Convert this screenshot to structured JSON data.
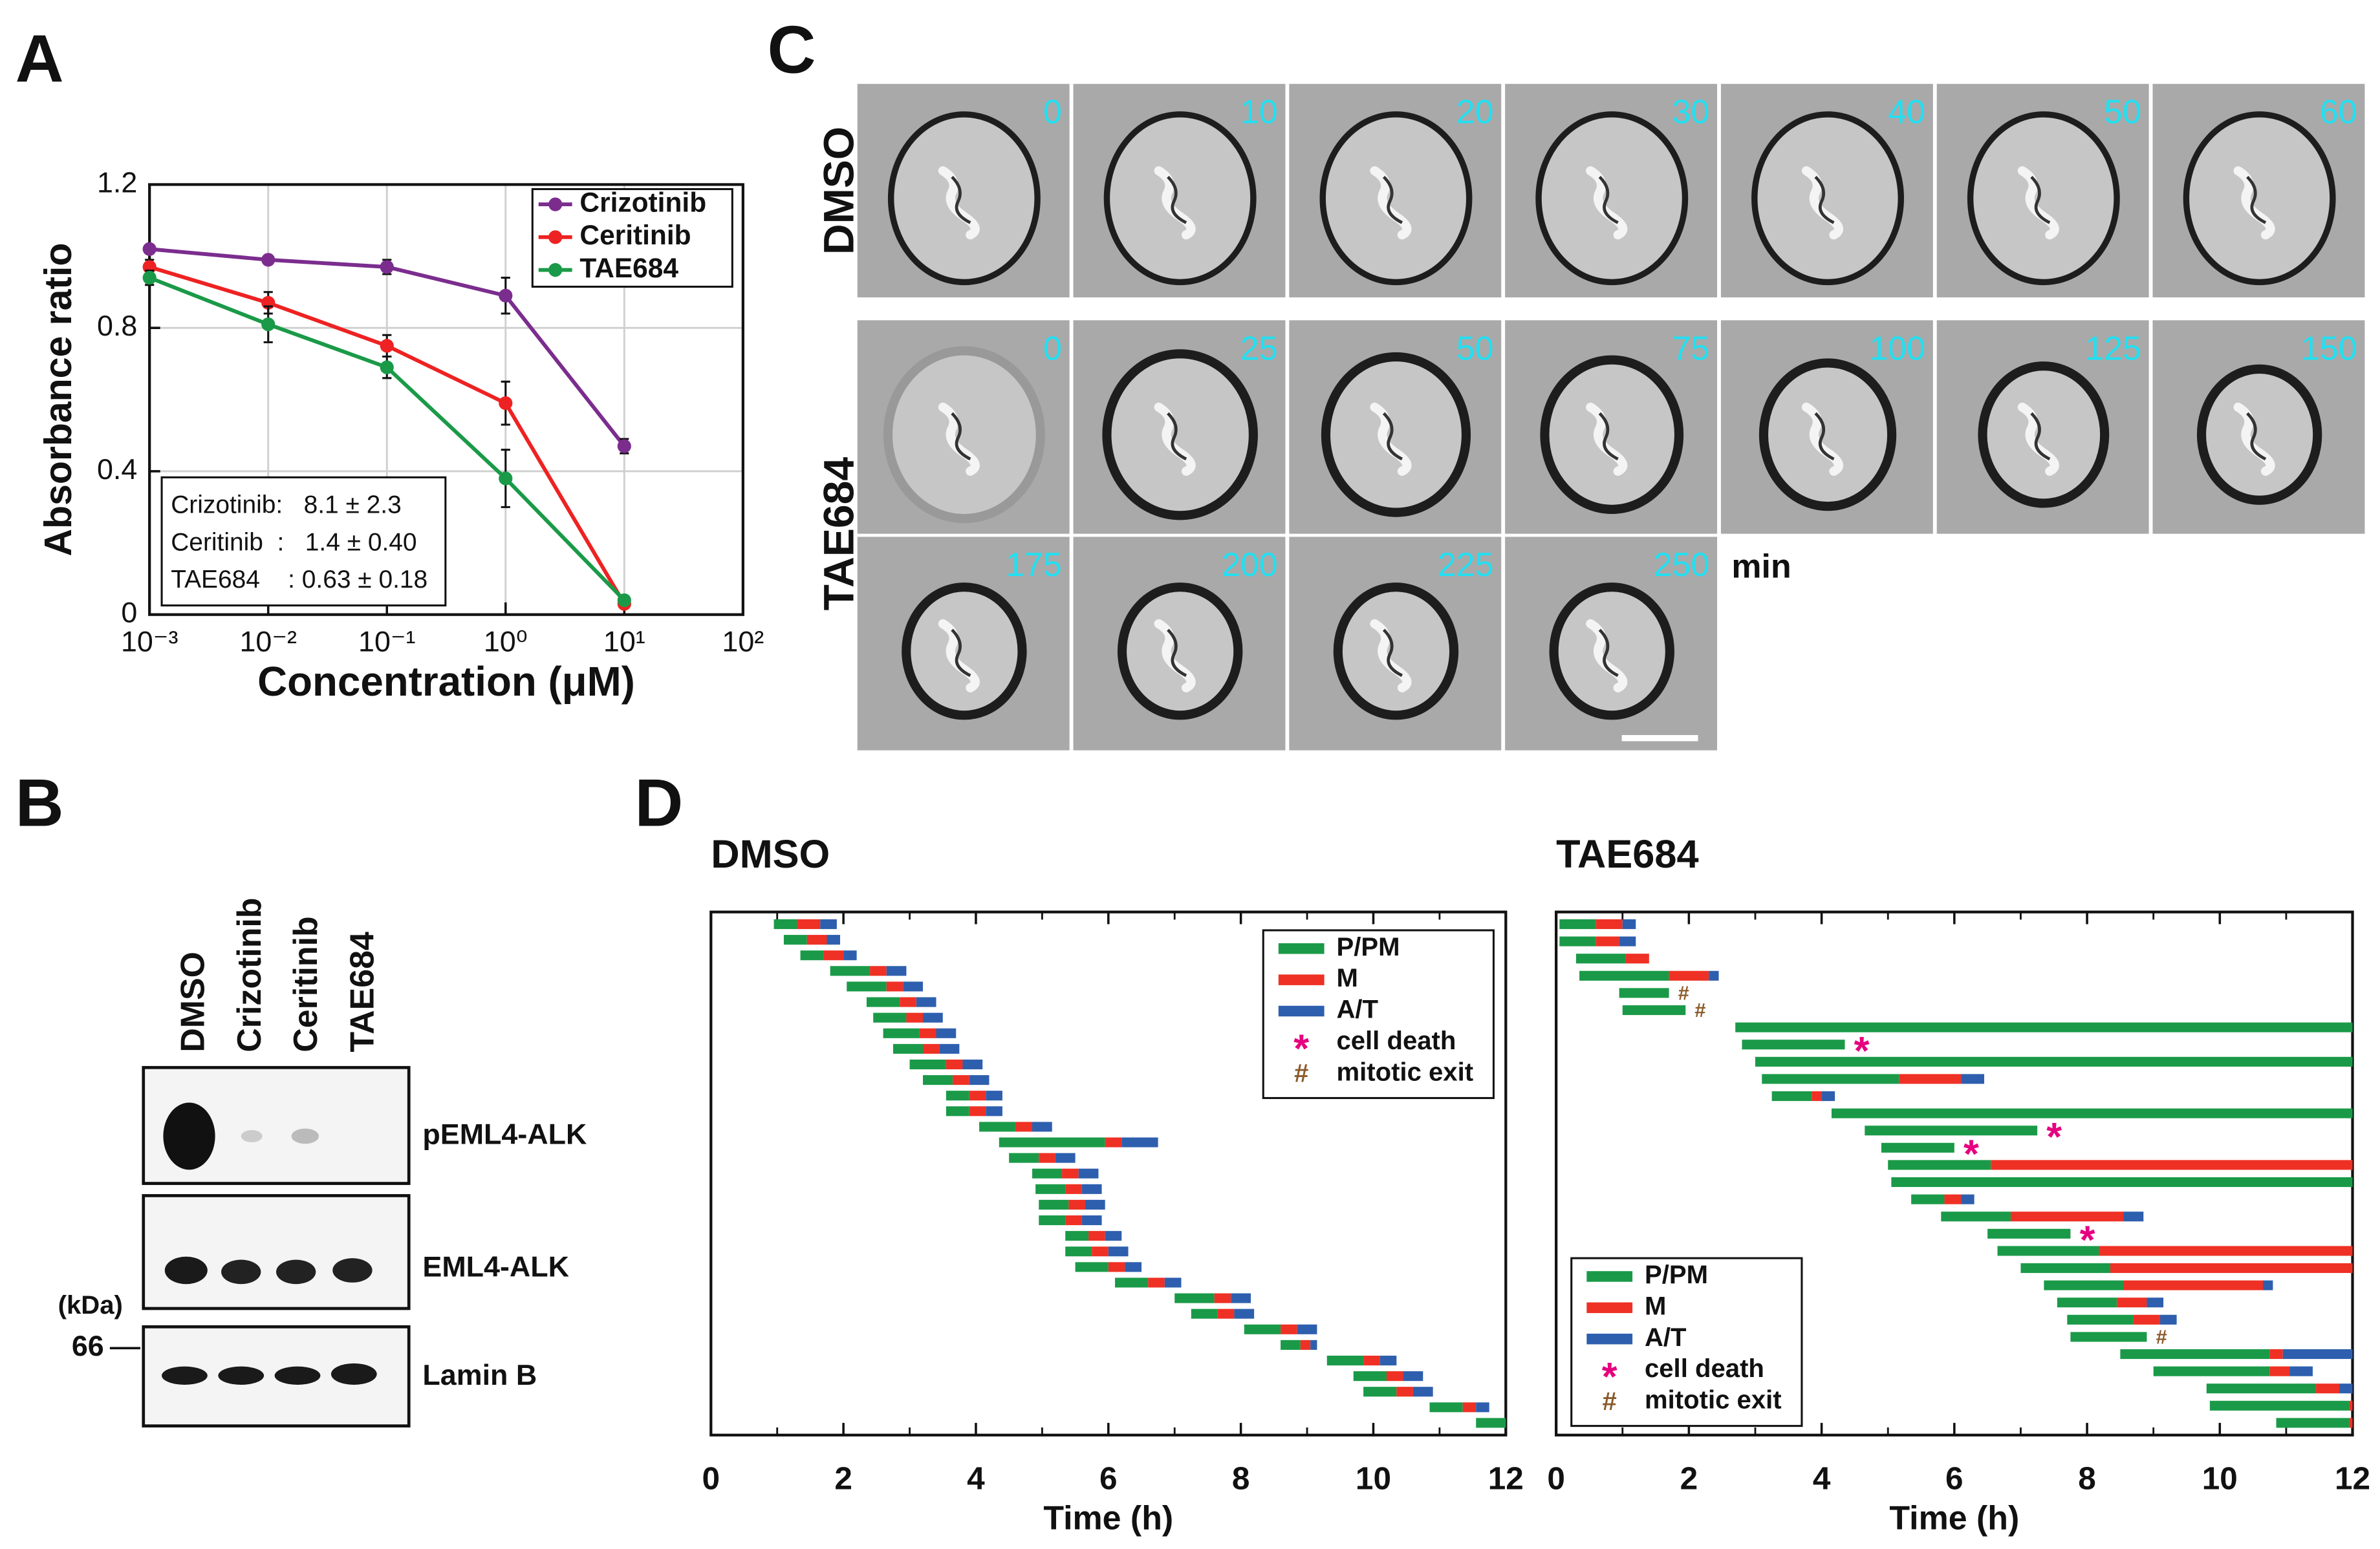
{
  "panels": [
    "A",
    "B",
    "C",
    "D"
  ],
  "chart_data": [
    {
      "type": "line",
      "xlabel": "Concentration (μM)",
      "ylabel": "Absorbance ratio",
      "xscale": "log",
      "xlim": [
        0.001,
        100
      ],
      "ylim": [
        0,
        1.2
      ],
      "xticks": [
        {
          "value": 0.001,
          "label": "10⁻³"
        },
        {
          "value": 0.01,
          "label": "10⁻²"
        },
        {
          "value": 0.1,
          "label": "10⁻¹"
        },
        {
          "value": 1,
          "label": "10⁰"
        },
        {
          "value": 10,
          "label": "10¹"
        },
        {
          "value": 100,
          "label": "10²"
        }
      ],
      "yticks": [
        0,
        0.4,
        0.8,
        1.2
      ],
      "grid": true,
      "legend": "upper right",
      "x": [
        0.001,
        0.01,
        0.1,
        1,
        10
      ],
      "series": [
        {
          "name": "Crizotinib",
          "color": "#7b2d8e",
          "values": [
            1.02,
            0.99,
            0.97,
            0.89,
            0.47
          ],
          "errors": [
            0.01,
            0.01,
            0.02,
            0.05,
            0.02
          ]
        },
        {
          "name": "Ceritinib",
          "color": "#ee2222",
          "values": [
            0.97,
            0.87,
            0.75,
            0.59,
            0.03
          ],
          "errors": [
            0.02,
            0.03,
            0.03,
            0.06,
            0.01
          ]
        },
        {
          "name": "TAE684",
          "color": "#1a9a48",
          "values": [
            0.94,
            0.81,
            0.69,
            0.38,
            0.04
          ],
          "errors": [
            0.02,
            0.05,
            0.03,
            0.08,
            0.01
          ]
        }
      ],
      "annotations": [
        "Crizotinib:   8.1 ± 2.3",
        "Ceritinib  :   1.4 ± 0.40",
        "TAE684    : 0.63 ± 0.18"
      ]
    },
    {
      "type": "gantt",
      "title": "DMSO",
      "xlabel": "Time (h)",
      "xlim": [
        0,
        12
      ],
      "xticks": [
        0,
        2,
        4,
        6,
        8,
        10,
        12
      ],
      "xticks_minor": [
        1,
        3,
        5,
        7,
        9,
        11
      ],
      "legend": "upper right",
      "start": [
        0.95,
        1.1,
        1.35,
        1.8,
        2.05,
        2.35,
        2.45,
        2.6,
        2.75,
        3.0,
        3.2,
        3.55,
        3.55,
        4.05,
        4.35,
        4.5,
        4.85,
        4.9,
        4.95,
        4.95,
        5.35,
        5.35,
        5.5,
        6.1,
        7.0,
        7.25,
        8.05,
        8.6,
        9.3,
        9.7,
        9.85,
        10.85,
        11.55
      ],
      "series": [
        {
          "name": "P/PM",
          "color": "#1a9a48",
          "values": [
            0.35,
            0.35,
            0.35,
            0.6,
            0.6,
            0.5,
            0.5,
            0.55,
            0.45,
            0.55,
            0.45,
            0.35,
            0.35,
            0.55,
            1.6,
            0.45,
            0.45,
            0.45,
            0.45,
            0.4,
            0.35,
            0.4,
            0.5,
            0.5,
            0.6,
            0.4,
            0.55,
            0.3,
            0.55,
            0.5,
            0.5,
            0.5,
            0.45
          ]
        },
        {
          "name": "M",
          "color": "#ee3124",
          "values": [
            0.35,
            0.3,
            0.3,
            0.25,
            0.25,
            0.25,
            0.25,
            0.25,
            0.25,
            0.25,
            0.25,
            0.25,
            0.25,
            0.25,
            0.25,
            0.25,
            0.25,
            0.25,
            0.25,
            0.25,
            0.25,
            0.25,
            0.25,
            0.25,
            0.25,
            0.25,
            0.25,
            0.15,
            0.25,
            0.25,
            0.25,
            0.2,
            0
          ]
        },
        {
          "name": "A/T",
          "color": "#2e5fae",
          "values": [
            0.25,
            0.2,
            0.2,
            0.3,
            0.3,
            0.3,
            0.3,
            0.3,
            0.3,
            0.3,
            0.3,
            0.25,
            0.25,
            0.3,
            0.55,
            0.3,
            0.3,
            0.3,
            0.3,
            0.3,
            0.25,
            0.3,
            0.25,
            0.25,
            0.3,
            0.3,
            0.3,
            0.1,
            0.25,
            0.3,
            0.3,
            0.2,
            0
          ]
        }
      ],
      "markers": [
        {
          "symbol": "*",
          "name": "cell death",
          "color": "#e6007e"
        },
        {
          "symbol": "#",
          "name": "mitotic exit",
          "color": "#8b5a2b"
        }
      ]
    },
    {
      "type": "gantt",
      "title": "TAE684",
      "xlabel": "Time (h)",
      "xlim": [
        0,
        12
      ],
      "xticks": [
        0,
        2,
        4,
        6,
        8,
        10,
        12
      ],
      "xticks_minor": [
        1,
        3,
        5,
        7,
        9,
        11
      ],
      "legend": "lower left",
      "start": [
        0.05,
        0.05,
        0.3,
        0.35,
        0.95,
        1.0,
        2.7,
        2.8,
        3.0,
        3.1,
        3.25,
        4.15,
        4.65,
        4.9,
        5.0,
        5.05,
        5.35,
        5.8,
        6.5,
        6.65,
        7.0,
        7.35,
        7.55,
        7.7,
        7.75,
        8.5,
        9.0,
        9.8,
        9.85,
        10.85
      ],
      "series": [
        {
          "name": "P/PM",
          "color": "#1a9a48",
          "values": [
            0.55,
            0.55,
            0.75,
            1.35,
            0.75,
            0.95,
            9.3,
            1.55,
            9.0,
            2.07,
            0.6,
            7.85,
            2.6,
            1.1,
            1.55,
            6.95,
            0.5,
            1.05,
            1.25,
            1.53,
            1.35,
            1.2,
            0.9,
            1.0,
            1.15,
            2.25,
            1.75,
            1.65,
            2.1,
            1.1
          ]
        },
        {
          "name": "M",
          "color": "#ee3124",
          "values": [
            0.4,
            0.35,
            0.35,
            0.6,
            0,
            0,
            0,
            0,
            0,
            0.93,
            0.15,
            0,
            0,
            0,
            5.45,
            0,
            0.25,
            1.7,
            0,
            3.82,
            3.65,
            2.1,
            0.45,
            0.4,
            0,
            0.2,
            0.3,
            0.35,
            0.05,
            0.05
          ]
        },
        {
          "name": "A/T",
          "color": "#2e5fae",
          "values": [
            0.2,
            0.25,
            0,
            0.15,
            0,
            0,
            0,
            0,
            0,
            0.35,
            0.2,
            0,
            0,
            0,
            0,
            0,
            0.2,
            0.3,
            0,
            0,
            0,
            0.15,
            0.25,
            0.25,
            0,
            1.05,
            0.35,
            0.2,
            0,
            0
          ]
        }
      ],
      "events": [
        null,
        null,
        null,
        null,
        "#",
        "#",
        null,
        "*",
        null,
        null,
        null,
        null,
        "*",
        "*",
        null,
        null,
        null,
        null,
        "*",
        null,
        null,
        null,
        null,
        null,
        "#",
        null,
        null,
        null,
        null,
        null
      ],
      "markers": [
        {
          "symbol": "*",
          "name": "cell death",
          "color": "#e6007e"
        },
        {
          "symbol": "#",
          "name": "mitotic exit",
          "color": "#8b5a2b"
        }
      ]
    }
  ],
  "blot": {
    "lanes": [
      "DMSO",
      "Crizotinib",
      "Ceritinib",
      "TAE684"
    ],
    "bands": [
      "pEML4-ALK",
      "EML4-ALK",
      "Lamin B"
    ],
    "unit": "(kDa)",
    "marker": 66
  },
  "timelapse": {
    "rows": [
      {
        "name": "DMSO",
        "times": [
          0,
          10,
          20,
          30,
          40,
          50,
          60
        ]
      },
      {
        "name": "TAE684",
        "times": [
          0,
          25,
          50,
          75,
          100,
          125,
          150,
          175,
          200,
          225,
          250
        ]
      }
    ],
    "unit": "min"
  }
}
